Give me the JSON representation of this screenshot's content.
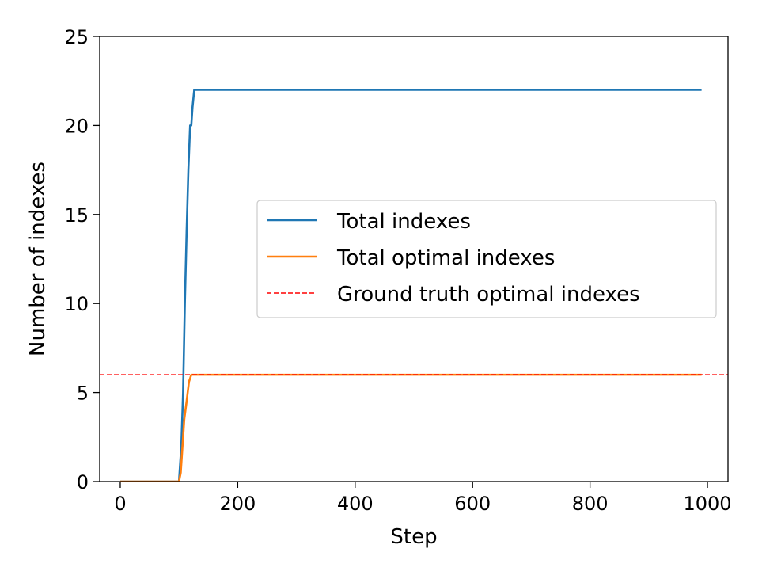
{
  "chart_data": {
    "type": "line",
    "xlabel": "Step",
    "ylabel": "Number of indexes",
    "xlim": [
      -35,
      1035
    ],
    "ylim": [
      0,
      25
    ],
    "xticks": [
      0,
      200,
      400,
      600,
      800,
      1000
    ],
    "yticks": [
      0,
      5,
      10,
      15,
      20,
      25
    ],
    "grid": false,
    "legend_position": "center-right",
    "series": [
      {
        "name": "Total indexes",
        "color": "#1f77b4",
        "style": "solid",
        "points": [
          [
            0,
            0
          ],
          [
            100,
            0
          ],
          [
            104,
            2
          ],
          [
            107,
            5
          ],
          [
            110,
            10
          ],
          [
            113,
            14
          ],
          [
            116,
            17.5
          ],
          [
            119,
            20
          ],
          [
            121,
            20
          ],
          [
            123,
            21
          ],
          [
            126,
            22
          ],
          [
            990,
            22
          ]
        ]
      },
      {
        "name": "Total optimal indexes",
        "color": "#ff7f0e",
        "style": "solid",
        "points": [
          [
            0,
            0
          ],
          [
            100,
            0
          ],
          [
            103,
            0.5
          ],
          [
            106,
            2
          ],
          [
            109,
            3.5
          ],
          [
            113,
            4.5
          ],
          [
            117,
            5.6
          ],
          [
            121,
            6
          ],
          [
            990,
            6
          ]
        ]
      },
      {
        "name": "Ground truth optimal indexes",
        "color": "#ff0000",
        "style": "dashed",
        "points": [
          [
            -35,
            6
          ],
          [
            1035,
            6
          ]
        ]
      }
    ]
  }
}
